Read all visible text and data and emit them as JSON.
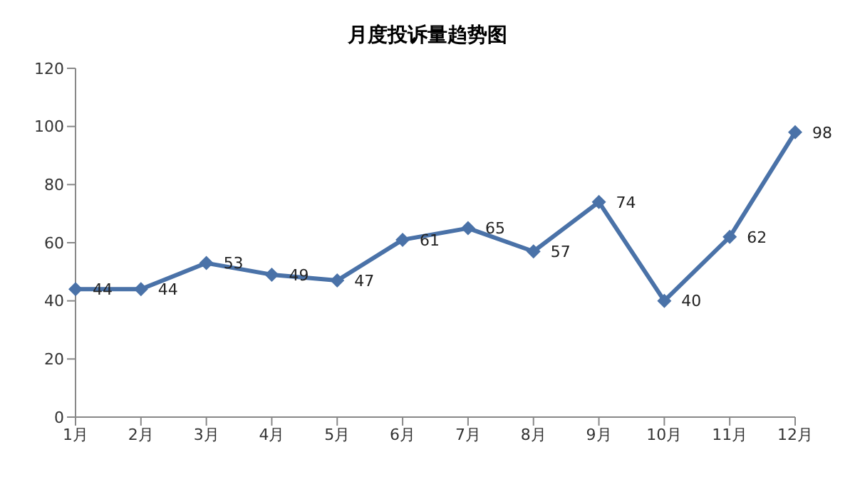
{
  "chart_data": {
    "type": "line",
    "title": "月度投诉量趋势图",
    "categories": [
      "1月",
      "2月",
      "3月",
      "4月",
      "5月",
      "6月",
      "7月",
      "8月",
      "9月",
      "10月",
      "11月",
      "12月"
    ],
    "series": [
      {
        "color": "#4a72a8",
        "values": [
          44,
          44,
          53,
          49,
          47,
          61,
          65,
          57,
          74,
          40,
          62,
          98
        ]
      }
    ],
    "ylim": [
      0,
      120
    ],
    "yticks": [
      0,
      20,
      40,
      60,
      80,
      100,
      120
    ],
    "grid": false,
    "legend": false,
    "marker": "diamond",
    "line_style": "solid",
    "data_labels": true
  }
}
